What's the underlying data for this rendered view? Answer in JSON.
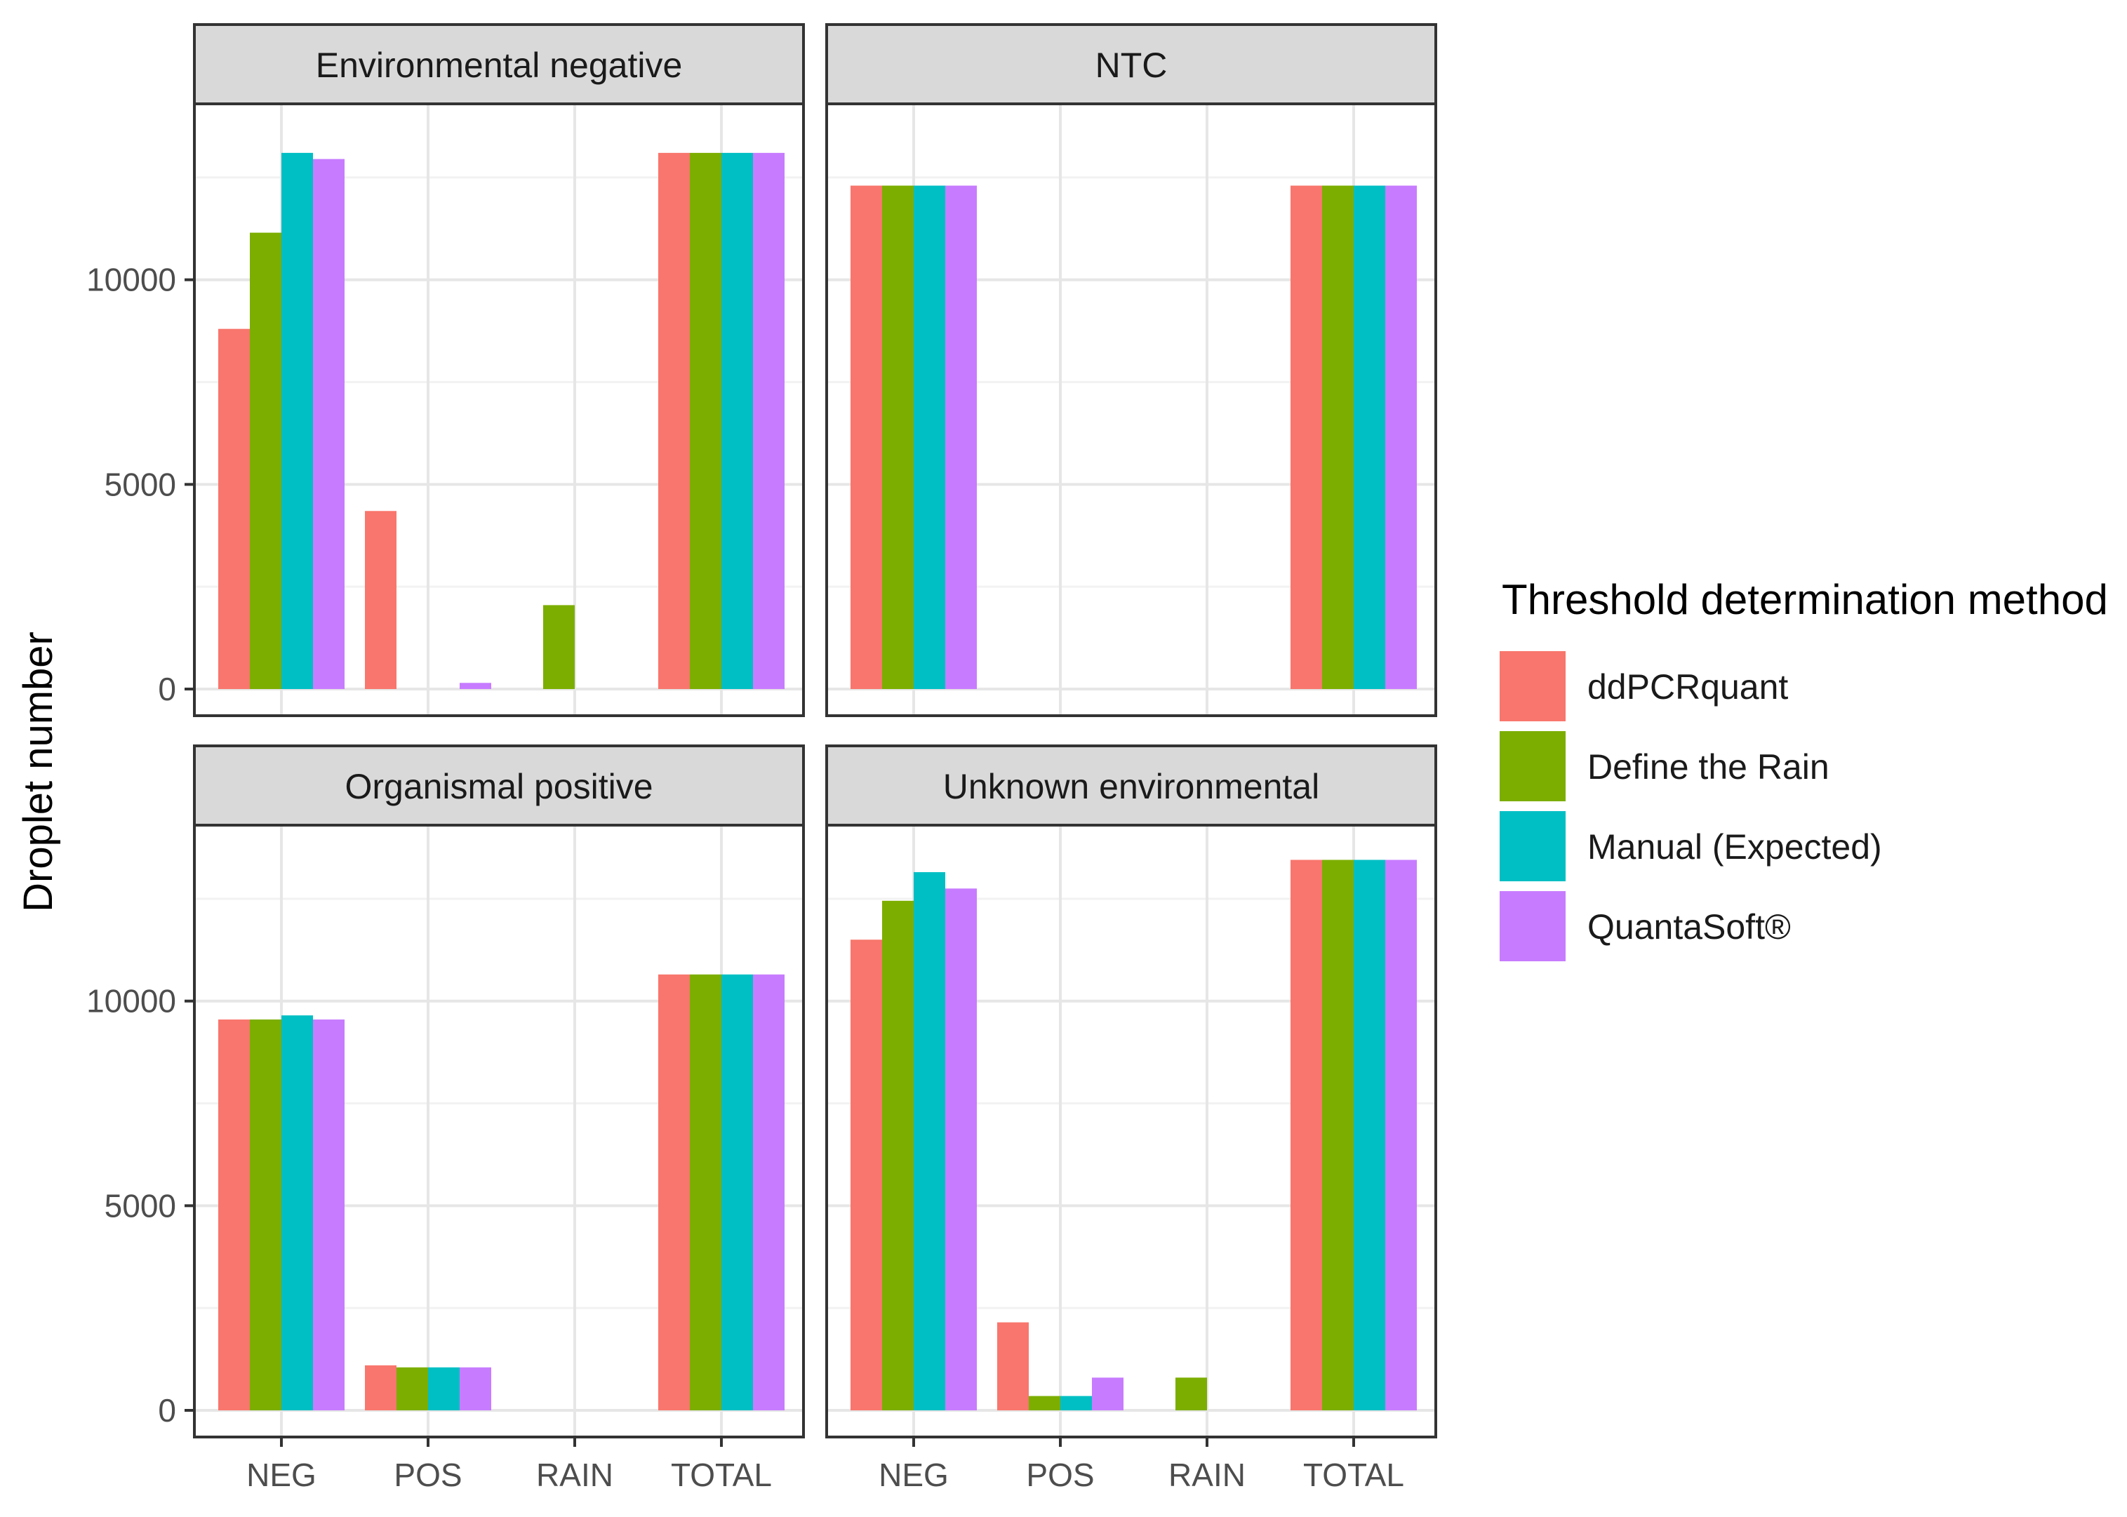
{
  "chart_data": {
    "type": "bar",
    "layout": "facet-grid 2x2, grouped bars",
    "ylabel": "Droplet number",
    "xlabel": "",
    "ylim": [
      0,
      14500
    ],
    "y_ticks": [
      0,
      5000,
      10000
    ],
    "y_tick_labels": [
      "0",
      "5000",
      "10000"
    ],
    "categories": [
      "NEG",
      "POS",
      "RAIN",
      "TOTAL"
    ],
    "legend": {
      "title": "Threshold determination method",
      "position": "right",
      "entries": [
        {
          "name": "ddPCRquant",
          "color": "#F8766D"
        },
        {
          "name": "Define the Rain",
          "color": "#7CAE00"
        },
        {
          "name": "Manual (Expected)",
          "color": "#00BFC4"
        },
        {
          "name": "QuantaSoft®",
          "color": "#C77CFF"
        }
      ]
    },
    "panels": [
      {
        "title": "Environmental negative",
        "series": [
          {
            "name": "ddPCRquant",
            "values": [
              8800,
              4350,
              0,
              13100
            ]
          },
          {
            "name": "Define the Rain",
            "values": [
              11150,
              0,
              2050,
              13100
            ]
          },
          {
            "name": "Manual (Expected)",
            "values": [
              13100,
              0,
              0,
              13100
            ]
          },
          {
            "name": "QuantaSoft®",
            "values": [
              12950,
              150,
              0,
              13100
            ]
          }
        ]
      },
      {
        "title": "NTC",
        "series": [
          {
            "name": "ddPCRquant",
            "values": [
              12300,
              0,
              0,
              12300
            ]
          },
          {
            "name": "Define the Rain",
            "values": [
              12300,
              0,
              0,
              12300
            ]
          },
          {
            "name": "Manual (Expected)",
            "values": [
              12300,
              0,
              0,
              12300
            ]
          },
          {
            "name": "QuantaSoft®",
            "values": [
              12300,
              0,
              0,
              12300
            ]
          }
        ]
      },
      {
        "title": "Organismal positive",
        "series": [
          {
            "name": "ddPCRquant",
            "values": [
              9550,
              1100,
              0,
              10650
            ]
          },
          {
            "name": "Define the Rain",
            "values": [
              9550,
              1050,
              0,
              10650
            ]
          },
          {
            "name": "Manual (Expected)",
            "values": [
              9650,
              1050,
              0,
              10650
            ]
          },
          {
            "name": "QuantaSoft®",
            "values": [
              9550,
              1050,
              0,
              10650
            ]
          }
        ]
      },
      {
        "title": "Unknown environmental",
        "series": [
          {
            "name": "ddPCRquant",
            "values": [
              11500,
              2150,
              0,
              13450
            ]
          },
          {
            "name": "Define the Rain",
            "values": [
              12450,
              350,
              800,
              13450
            ]
          },
          {
            "name": "Manual (Expected)",
            "values": [
              13150,
              350,
              0,
              13450
            ]
          },
          {
            "name": "QuantaSoft®",
            "values": [
              12750,
              800,
              0,
              13450
            ]
          }
        ]
      }
    ]
  }
}
